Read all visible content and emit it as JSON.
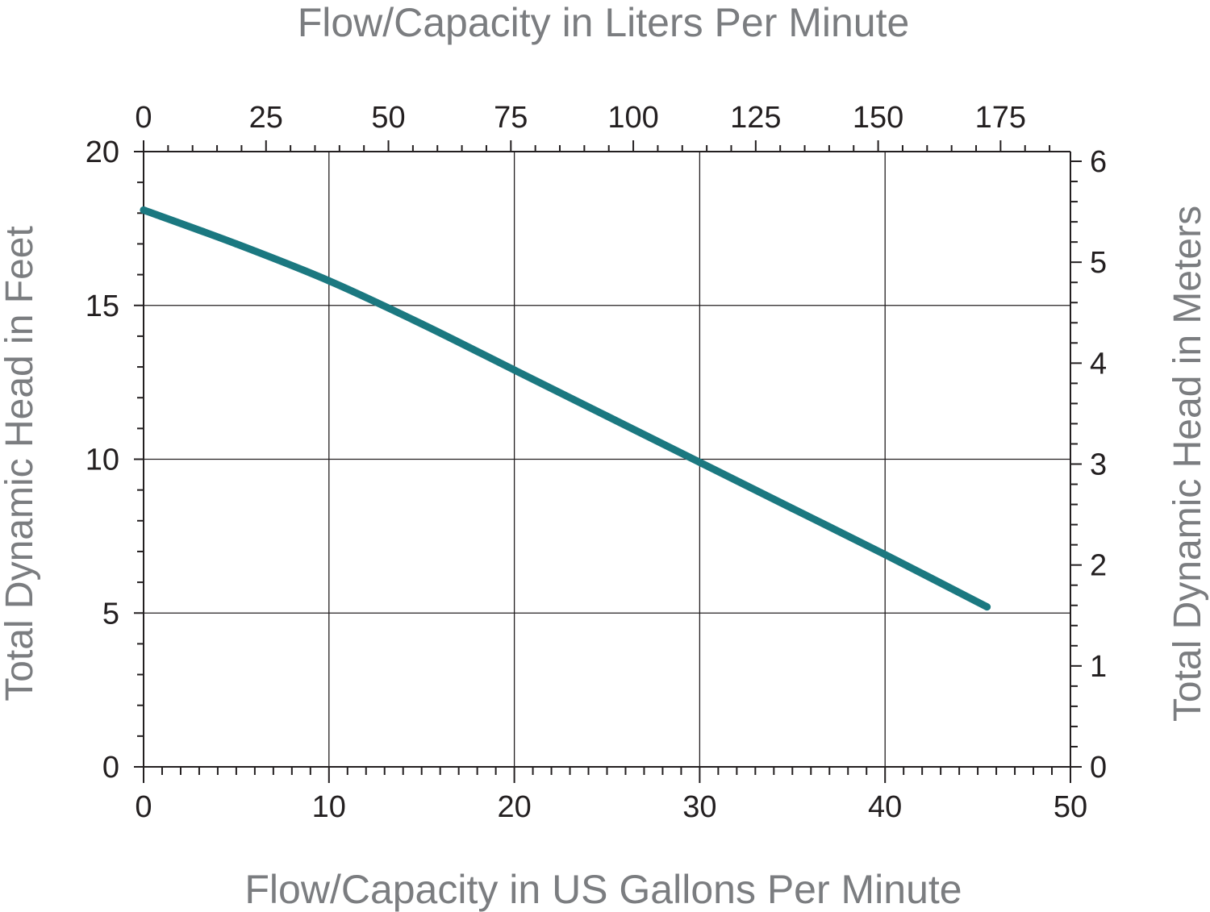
{
  "chart_data": {
    "type": "line",
    "title": "",
    "xlabel": "Flow/Capacity in US Gallons Per Minute",
    "x2label": "Flow/Capacity in Liters Per Minute",
    "ylabel": "Total Dynamic Head in Feet",
    "y2label": "Total Dynamic Head in Meters",
    "xlim": [
      0,
      50
    ],
    "ylim": [
      0,
      20
    ],
    "x2lim": [
      0,
      189.27
    ],
    "y2lim": [
      0,
      6.096
    ],
    "xticks": [
      0,
      10,
      20,
      30,
      40,
      50
    ],
    "yticks": [
      0,
      5,
      10,
      15,
      20
    ],
    "x2ticks": [
      0,
      25,
      50,
      75,
      100,
      125,
      150,
      175
    ],
    "y2ticks": [
      0,
      1,
      2,
      3,
      4,
      5,
      6
    ],
    "grid": true,
    "legend": "none",
    "colors": {
      "line": "#1b7880",
      "grid": "#231f20",
      "axis_title": "#7b7d80",
      "tick_label": "#231f20"
    },
    "series": [
      {
        "x": [
          0,
          5,
          10,
          15,
          20,
          25,
          30,
          35,
          40,
          45.5
        ],
        "values": [
          18.1,
          17.0,
          15.8,
          14.4,
          12.9,
          11.4,
          9.9,
          8.4,
          6.9,
          5.2
        ]
      }
    ]
  }
}
